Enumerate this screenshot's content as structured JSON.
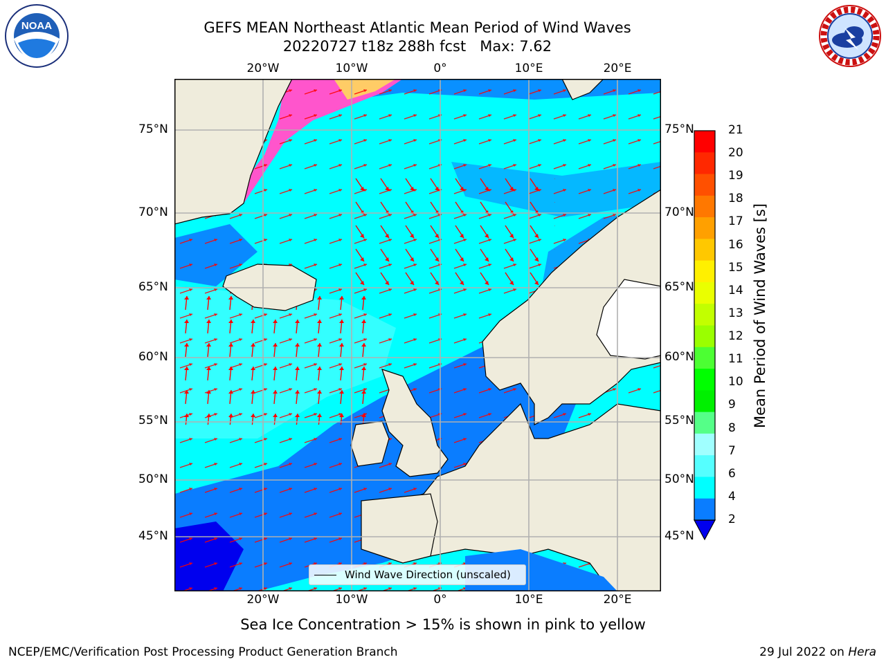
{
  "title": {
    "line1": "GEFS MEAN Northeast Atlantic Mean Period of Wind Waves",
    "line2": "20220727 t18z 288h fcst   Max: 7.62"
  },
  "logos": {
    "left": {
      "text": "NOAA",
      "ring_text": "NATIONAL OCEANIC AND ATMOSPHERIC ADMINISTRATION · U.S. DEPARTMENT OF COMMERCE",
      "icon": "noaa-logo-icon"
    },
    "right": {
      "text": "NATIONAL WEATHER SERVICE",
      "icon": "nws-logo-icon"
    }
  },
  "map": {
    "lon_ticks_top": [
      "20°W",
      "10°W",
      "0°",
      "10°E",
      "20°E"
    ],
    "lon_ticks_bottom": [
      "20°W",
      "10°W",
      "0°",
      "10°E",
      "20°E"
    ],
    "lat_ticks_left": [
      "75°N",
      "70°N",
      "65°N",
      "60°N",
      "55°N",
      "50°N",
      "45°N"
    ],
    "lat_ticks_right": [
      "75°N",
      "70°N",
      "65°N",
      "60°N",
      "55°N",
      "50°N",
      "45°N"
    ],
    "legend": "Wind Wave Direction (unscaled)",
    "colors": {
      "land": "#efecdc",
      "sea_low": "#0a7dff",
      "sea_mid": "#00ffff",
      "sea_light": "#55ffff",
      "arrow": "#ff0000",
      "ice_pink": "#ff55cc",
      "grid": "#b0b0b0"
    }
  },
  "colorbar": {
    "title": "Mean Period of Wind Waves [s]",
    "labels": [
      "21",
      "20",
      "19",
      "18",
      "17",
      "16",
      "15",
      "14",
      "13",
      "12",
      "11",
      "10",
      "9",
      "8",
      "7",
      "6",
      "4",
      "2"
    ],
    "colors": [
      "#ff0000",
      "#ff2800",
      "#ff5000",
      "#ff7800",
      "#ffa000",
      "#ffc800",
      "#fff000",
      "#eaff00",
      "#c2ff00",
      "#9aff00",
      "#4cff33",
      "#00ff00",
      "#00f000",
      "#55ff88",
      "#a0ffff",
      "#55ffff",
      "#00ffff",
      "#0a7dff",
      "#0000ee"
    ]
  },
  "subtitle": "Sea Ice Concentration > 15% is shown in pink to yellow",
  "footer": {
    "left": "NCEP/EMC/Verification Post Processing Product Generation Branch",
    "date": "29 Jul 2022 on ",
    "machine": "Hera"
  }
}
